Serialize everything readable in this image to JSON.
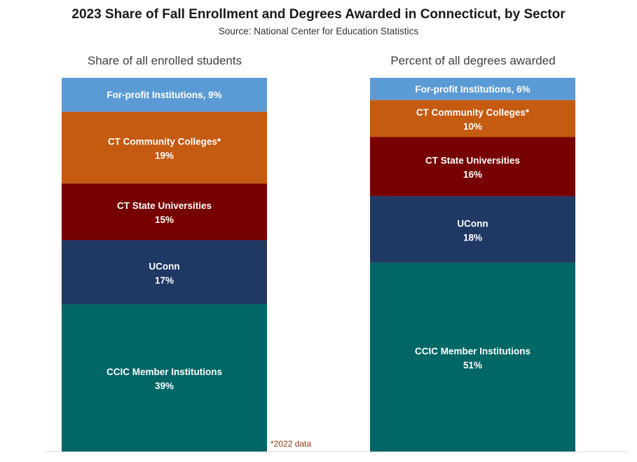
{
  "title": "2023 Share of Fall Enrollment and Degrees Awarded in Connecticut, by Sector",
  "subtitle": "Source: National Center for Education Statistics",
  "footnote": "*2022 data",
  "chart_data": {
    "type": "bar",
    "stacked": true,
    "normalized": true,
    "unit": "%",
    "categories": [
      "Share of all enrolled students",
      "Percent of all degrees awarded"
    ],
    "series": [
      {
        "name": "For-profit Institutions",
        "color": "#5b9bd5",
        "values": [
          9,
          6
        ],
        "inline_label": [
          true,
          true
        ]
      },
      {
        "name": "CT Community Colleges*",
        "color": "#c55a11",
        "values": [
          19,
          10
        ],
        "inline_label": [
          false,
          false
        ]
      },
      {
        "name": "CT State Universities",
        "color": "#760000",
        "values": [
          15,
          16
        ],
        "inline_label": [
          false,
          false
        ]
      },
      {
        "name": "UConn",
        "color": "#203864",
        "values": [
          17,
          18
        ],
        "inline_label": [
          false,
          false
        ]
      },
      {
        "name": "CCIC Member Institutions",
        "color": "#006666",
        "values": [
          39,
          51
        ],
        "inline_label": [
          false,
          false
        ]
      }
    ],
    "axes_visible": false,
    "legend": "none",
    "grid": false
  }
}
